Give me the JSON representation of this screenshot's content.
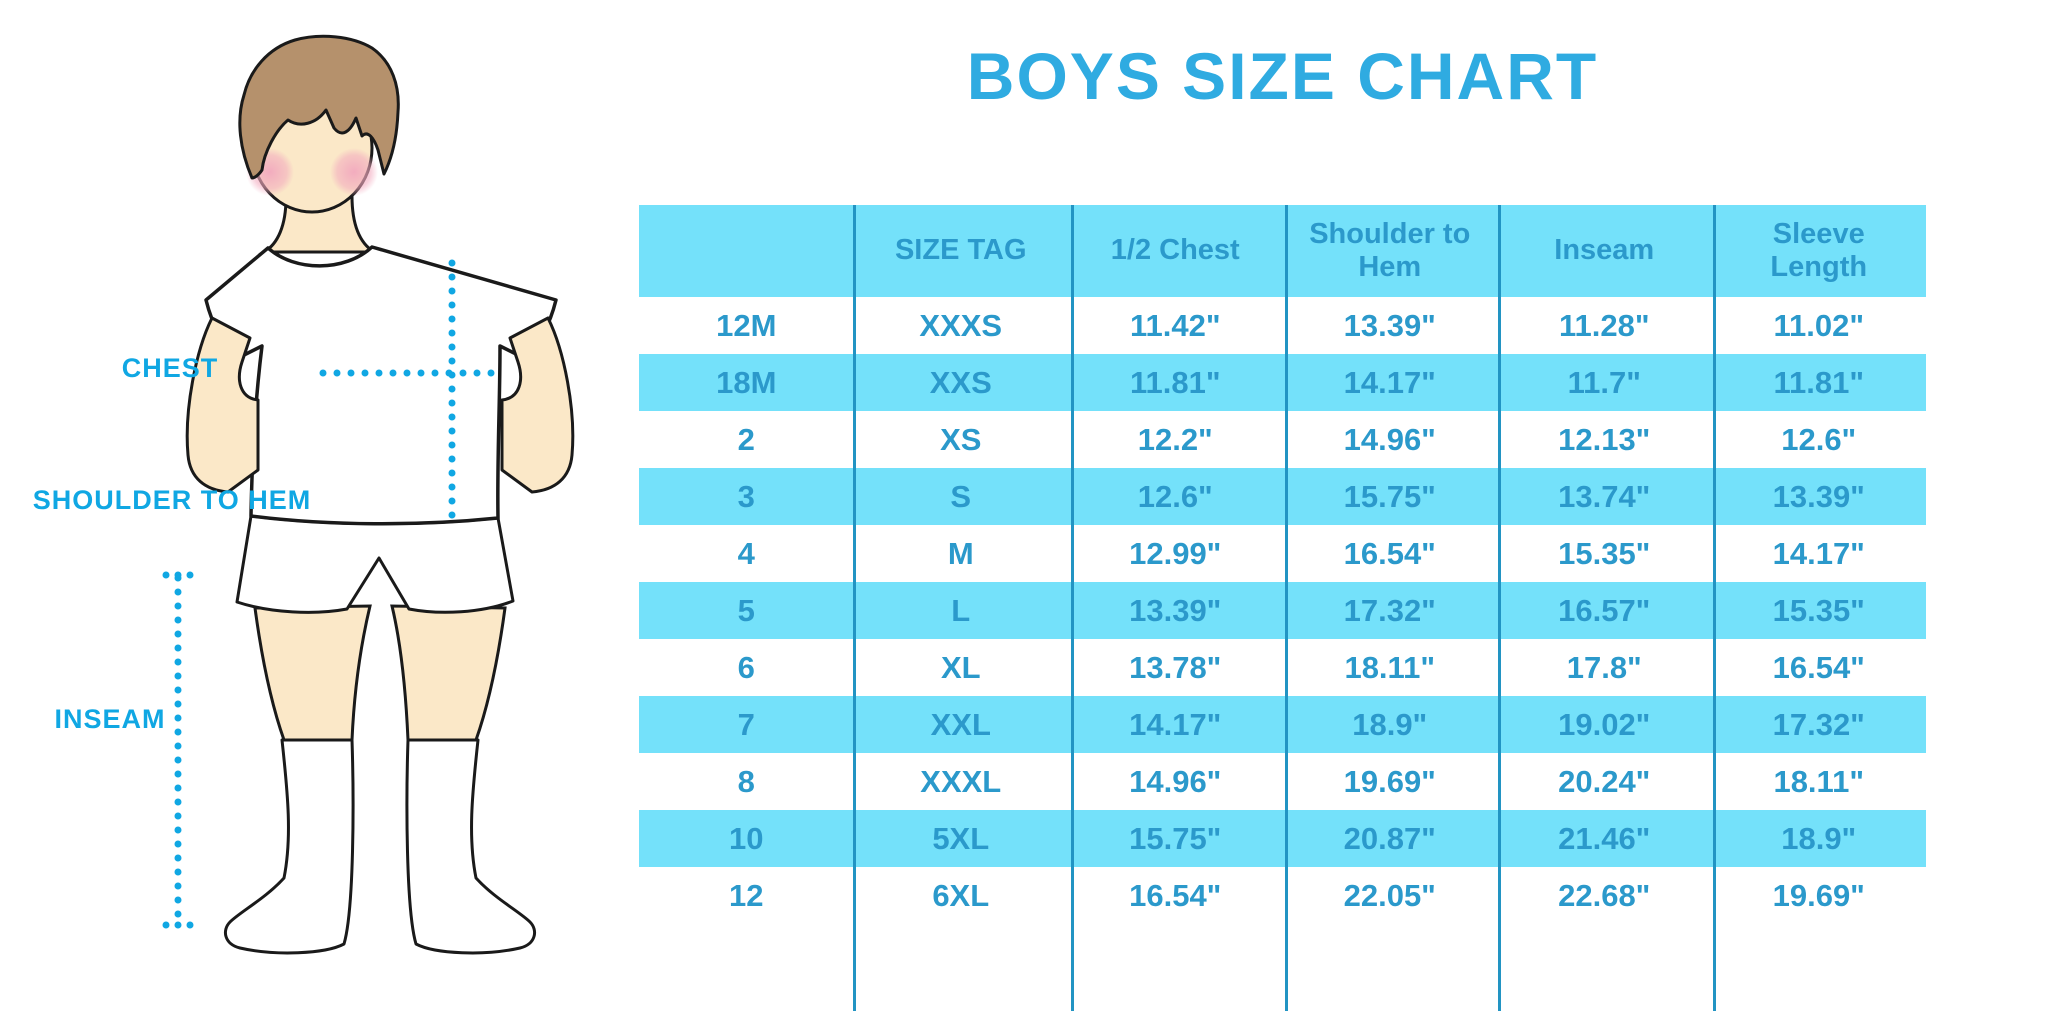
{
  "title": "BOYS SIZE CHART",
  "colors": {
    "title_blue": "#2FABE1",
    "table_text_blue": "#2B99CB",
    "row_fill_cyan": "#74E1FA",
    "grid_line_blue": "#2294C3",
    "measure_label_blue": "#10A7E3",
    "skin": "#FBE8C8",
    "hair_brown": "#B5916C",
    "blush_pink": "#F2A9BE"
  },
  "diagram": {
    "labels": {
      "chest": "CHEST",
      "shoulder_to_hem": "SHOULDER TO HEM",
      "inseam": "INSEAM"
    }
  },
  "chart_data": {
    "type": "table",
    "title": "BOYS SIZE CHART",
    "columns": [
      "",
      "SIZE TAG",
      "1/2 Chest",
      "Shoulder to Hem",
      "Inseam",
      "Sleeve Length"
    ],
    "rows": [
      [
        "12M",
        "XXXS",
        "11.42\"",
        "13.39\"",
        "11.28\"",
        "11.02\""
      ],
      [
        "18M",
        "XXS",
        "11.81\"",
        "14.17\"",
        "11.7\"",
        "11.81\""
      ],
      [
        "2",
        "XS",
        "12.2\"",
        "14.96\"",
        "12.13\"",
        "12.6\""
      ],
      [
        "3",
        "S",
        "12.6\"",
        "15.75\"",
        "13.74\"",
        "13.39\""
      ],
      [
        "4",
        "M",
        "12.99\"",
        "16.54\"",
        "15.35\"",
        "14.17\""
      ],
      [
        "5",
        "L",
        "13.39\"",
        "17.32\"",
        "16.57\"",
        "15.35\""
      ],
      [
        "6",
        "XL",
        "13.78\"",
        "18.11\"",
        "17.8\"",
        "16.54\""
      ],
      [
        "7",
        "XXL",
        "14.17\"",
        "18.9\"",
        "19.02\"",
        "17.32\""
      ],
      [
        "8",
        "XXXL",
        "14.96\"",
        "19.69\"",
        "20.24\"",
        "18.11\""
      ],
      [
        "10",
        "5XL",
        "15.75\"",
        "20.87\"",
        "21.46\"",
        "18.9\""
      ],
      [
        "12",
        "6XL",
        "16.54\"",
        "22.05\"",
        "22.68\"",
        "19.69\""
      ]
    ]
  }
}
